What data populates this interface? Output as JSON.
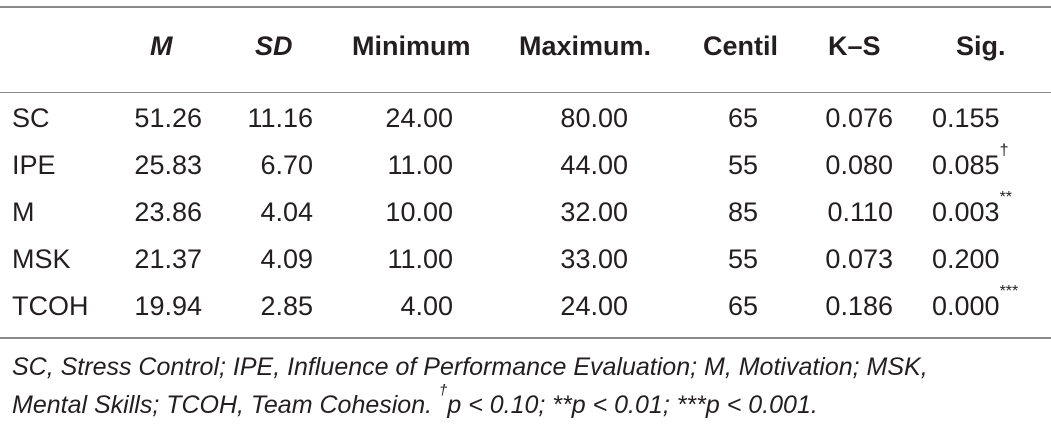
{
  "table": {
    "headers": {
      "label": "",
      "m": "M",
      "sd": "SD",
      "minimum": "Minimum",
      "maximum": "Maximum.",
      "centil": "Centil",
      "ks": "K–S",
      "sig": "Sig."
    },
    "rows": [
      {
        "label": "SC",
        "m": "51.26",
        "sd": "11.16",
        "minimum": "24.00",
        "maximum": "80.00",
        "centil": "65",
        "ks": "0.076",
        "sig": "0.155",
        "sig_mark": ""
      },
      {
        "label": "IPE",
        "m": "25.83",
        "sd": "6.70",
        "minimum": "11.00",
        "maximum": "44.00",
        "centil": "55",
        "ks": "0.080",
        "sig": "0.085",
        "sig_mark": "†"
      },
      {
        "label": "M",
        "m": "23.86",
        "sd": "4.04",
        "minimum": "10.00",
        "maximum": "32.00",
        "centil": "85",
        "ks": "0.110",
        "sig": "0.003",
        "sig_mark": "**"
      },
      {
        "label": "MSK",
        "m": "21.37",
        "sd": "4.09",
        "minimum": "11.00",
        "maximum": "33.00",
        "centil": "55",
        "ks": "0.073",
        "sig": "0.200",
        "sig_mark": ""
      },
      {
        "label": "TCOH",
        "m": "19.94",
        "sd": "2.85",
        "minimum": "4.00",
        "maximum": "24.00",
        "centil": "65",
        "ks": "0.186",
        "sig": "0.000",
        "sig_mark": "***"
      }
    ]
  },
  "footnote": {
    "line1": "SC, Stress Control; IPE, Influence of Performance Evaluation; M, Motivation; MSK,",
    "line2_a": "Mental Skills; TCOH, Team Cohesion. ",
    "dagger": "†",
    "line2_b": "p < 0.10; **p < 0.01; ***p < 0.001."
  }
}
